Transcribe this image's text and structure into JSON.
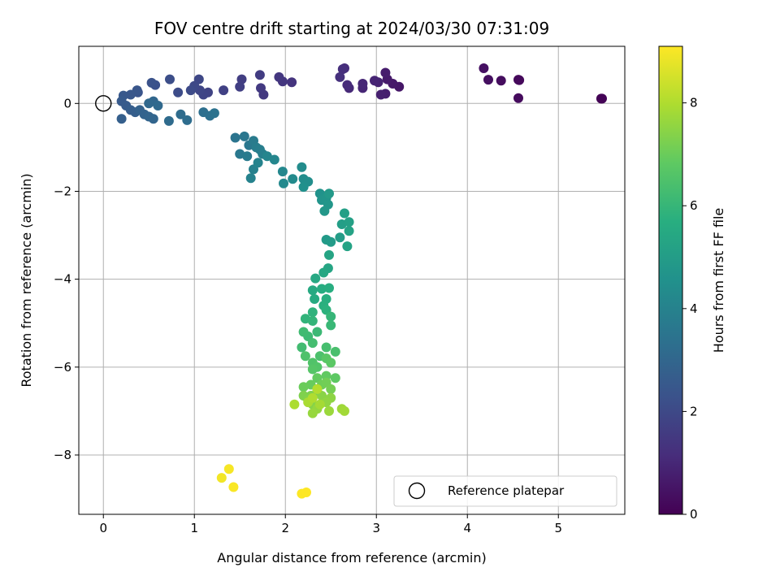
{
  "chart_data": {
    "type": "scatter",
    "title": "FOV centre drift starting at 2024/03/30 07:31:09",
    "xlabel": "Angular distance from reference (arcmin)",
    "ylabel": "Rotation from reference (arcmin)",
    "xlim": [
      -0.27,
      5.73
    ],
    "ylim": [
      -9.35,
      1.3
    ],
    "xticks": [
      0,
      1,
      2,
      3,
      4,
      5
    ],
    "yticks": [
      0,
      -2,
      -4,
      -6,
      -8
    ],
    "grid": true,
    "colorbar": {
      "label": "Hours from first FF file",
      "colormap": "viridis",
      "range": [
        0,
        9.1
      ],
      "ticks": [
        0,
        2,
        4,
        6,
        8
      ]
    },
    "legend": {
      "placement": "lower-right",
      "entries": [
        {
          "label": "Reference platepar",
          "marker": "open-circle"
        }
      ]
    },
    "reference_point": {
      "x": 0,
      "y": 0
    },
    "series": [
      {
        "points": [
          [
            5.47,
            0.11,
            0.0
          ],
          [
            5.48,
            0.11,
            0.05
          ],
          [
            4.56,
            0.54,
            0.15
          ],
          [
            4.57,
            0.53,
            0.2
          ],
          [
            4.56,
            0.12,
            0.25
          ],
          [
            4.37,
            0.52,
            0.3
          ],
          [
            4.23,
            0.54,
            0.35
          ],
          [
            4.18,
            0.8,
            0.4
          ],
          [
            3.25,
            0.38,
            0.55
          ],
          [
            3.18,
            0.45,
            0.6
          ],
          [
            3.12,
            0.55,
            0.65
          ],
          [
            3.1,
            0.7,
            0.7
          ],
          [
            3.1,
            0.22,
            0.75
          ],
          [
            3.05,
            0.2,
            0.8
          ],
          [
            3.02,
            0.48,
            0.85
          ],
          [
            2.98,
            0.52,
            0.9
          ],
          [
            2.85,
            0.35,
            0.95
          ],
          [
            2.85,
            0.45,
            1.0
          ],
          [
            2.7,
            0.35,
            1.05
          ],
          [
            2.68,
            0.42,
            1.1
          ],
          [
            2.65,
            0.8,
            1.15
          ],
          [
            2.63,
            0.78,
            1.2
          ],
          [
            2.6,
            0.6,
            1.25
          ],
          [
            2.07,
            0.48,
            1.35
          ],
          [
            1.97,
            0.5,
            1.4
          ],
          [
            1.93,
            0.6,
            1.45
          ],
          [
            1.76,
            0.2,
            1.5
          ],
          [
            1.73,
            0.35,
            1.55
          ],
          [
            1.72,
            0.65,
            1.6
          ],
          [
            1.52,
            0.55,
            1.65
          ],
          [
            1.5,
            0.38,
            1.7
          ],
          [
            1.32,
            0.3,
            1.75
          ],
          [
            1.15,
            0.25,
            1.8
          ],
          [
            1.1,
            0.2,
            1.85
          ],
          [
            1.06,
            0.3,
            1.9
          ],
          [
            1.05,
            0.55,
            1.95
          ],
          [
            1.0,
            0.4,
            2.0
          ],
          [
            0.96,
            0.3,
            2.05
          ],
          [
            0.82,
            0.25,
            2.1
          ],
          [
            0.73,
            0.55,
            2.15
          ],
          [
            0.57,
            0.42,
            2.25
          ],
          [
            0.53,
            0.47,
            2.3
          ],
          [
            0.38,
            0.25,
            2.35
          ],
          [
            0.37,
            0.3,
            2.4
          ],
          [
            0.3,
            0.2,
            2.45
          ],
          [
            0.22,
            0.18,
            2.5
          ],
          [
            0.2,
            0.05,
            2.55
          ],
          [
            0.25,
            -0.05,
            2.6
          ],
          [
            0.3,
            -0.15,
            2.65
          ],
          [
            0.35,
            -0.2,
            2.7
          ],
          [
            0.2,
            -0.35,
            2.75
          ],
          [
            0.4,
            -0.15,
            2.8
          ],
          [
            0.45,
            -0.25,
            2.85
          ],
          [
            0.5,
            -0.3,
            2.9
          ],
          [
            0.55,
            -0.35,
            2.95
          ],
          [
            0.55,
            0.05,
            3.0
          ],
          [
            0.5,
            0.0,
            3.05
          ],
          [
            0.6,
            -0.05,
            3.1
          ],
          [
            0.72,
            -0.4,
            3.15
          ],
          [
            0.85,
            -0.25,
            3.2
          ],
          [
            0.92,
            -0.38,
            3.25
          ],
          [
            1.1,
            -0.2,
            3.3
          ],
          [
            1.17,
            -0.28,
            3.35
          ],
          [
            1.22,
            -0.22,
            3.4
          ],
          [
            1.45,
            -0.78,
            3.5
          ],
          [
            1.55,
            -0.75,
            3.55
          ],
          [
            1.6,
            -0.95,
            3.6
          ],
          [
            1.5,
            -1.15,
            3.65
          ],
          [
            1.58,
            -1.2,
            3.7
          ],
          [
            1.65,
            -0.85,
            3.75
          ],
          [
            1.68,
            -1.0,
            3.8
          ],
          [
            1.72,
            -1.05,
            3.85
          ],
          [
            1.75,
            -1.15,
            3.9
          ],
          [
            1.65,
            -1.5,
            3.95
          ],
          [
            1.62,
            -1.7,
            4.0
          ],
          [
            1.7,
            -1.35,
            4.05
          ],
          [
            1.8,
            -1.2,
            4.1
          ],
          [
            1.88,
            -1.28,
            4.15
          ],
          [
            1.97,
            -1.55,
            4.2
          ],
          [
            1.98,
            -1.82,
            4.25
          ],
          [
            2.08,
            -1.72,
            4.3
          ],
          [
            2.18,
            -1.45,
            4.35
          ],
          [
            2.2,
            -1.72,
            4.4
          ],
          [
            2.25,
            -1.78,
            4.45
          ],
          [
            2.2,
            -1.9,
            4.5
          ],
          [
            2.38,
            -2.05,
            4.6
          ],
          [
            2.4,
            -2.2,
            4.65
          ],
          [
            2.45,
            -2.15,
            4.7
          ],
          [
            2.47,
            -2.3,
            4.75
          ],
          [
            2.43,
            -2.45,
            4.8
          ],
          [
            2.48,
            -2.05,
            4.85
          ],
          [
            2.45,
            -3.1,
            4.9
          ],
          [
            2.5,
            -3.15,
            4.95
          ],
          [
            2.6,
            -3.05,
            5.0
          ],
          [
            2.62,
            -2.75,
            5.05
          ],
          [
            2.65,
            -2.5,
            5.1
          ],
          [
            2.7,
            -2.7,
            5.15
          ],
          [
            2.7,
            -2.9,
            5.2
          ],
          [
            2.68,
            -3.25,
            5.25
          ],
          [
            2.48,
            -3.45,
            5.3
          ],
          [
            2.47,
            -3.75,
            5.35
          ],
          [
            2.42,
            -3.85,
            5.4
          ],
          [
            2.33,
            -3.98,
            5.45
          ],
          [
            2.3,
            -4.25,
            5.5
          ],
          [
            2.32,
            -4.45,
            5.55
          ],
          [
            2.4,
            -4.22,
            5.6
          ],
          [
            2.48,
            -4.2,
            5.65
          ],
          [
            2.45,
            -4.45,
            5.7
          ],
          [
            2.42,
            -4.6,
            5.75
          ],
          [
            2.45,
            -4.7,
            5.8
          ],
          [
            2.3,
            -4.75,
            5.85
          ],
          [
            2.22,
            -4.9,
            5.9
          ],
          [
            2.3,
            -4.95,
            5.95
          ],
          [
            2.5,
            -4.85,
            6.0
          ],
          [
            2.5,
            -5.05,
            6.05
          ],
          [
            2.35,
            -5.2,
            6.1
          ],
          [
            2.25,
            -5.3,
            6.15
          ],
          [
            2.2,
            -5.2,
            6.2
          ],
          [
            2.18,
            -5.55,
            6.25
          ],
          [
            2.3,
            -5.45,
            6.3
          ],
          [
            2.45,
            -5.55,
            6.35
          ],
          [
            2.55,
            -5.65,
            6.4
          ],
          [
            2.38,
            -5.75,
            6.45
          ],
          [
            2.22,
            -5.75,
            6.5
          ],
          [
            2.3,
            -5.9,
            6.55
          ],
          [
            2.35,
            -6.0,
            6.6
          ],
          [
            2.3,
            -6.05,
            6.65
          ],
          [
            2.45,
            -5.8,
            6.7
          ],
          [
            2.5,
            -5.9,
            6.75
          ],
          [
            2.55,
            -6.25,
            6.8
          ],
          [
            2.45,
            -6.2,
            6.85
          ],
          [
            2.35,
            -6.25,
            6.9
          ],
          [
            2.28,
            -6.4,
            6.95
          ],
          [
            2.2,
            -6.45,
            7.0
          ],
          [
            2.4,
            -6.4,
            7.05
          ],
          [
            2.45,
            -6.35,
            7.1
          ],
          [
            2.5,
            -6.5,
            7.15
          ],
          [
            2.35,
            -6.55,
            7.2
          ],
          [
            2.28,
            -6.65,
            7.25
          ],
          [
            2.2,
            -6.65,
            7.3
          ],
          [
            2.25,
            -6.75,
            7.35
          ],
          [
            2.3,
            -6.85,
            7.4
          ],
          [
            2.4,
            -6.65,
            7.45
          ],
          [
            2.5,
            -6.7,
            7.5
          ],
          [
            2.45,
            -6.8,
            7.55
          ],
          [
            2.35,
            -6.95,
            7.6
          ],
          [
            2.3,
            -7.05,
            7.65
          ],
          [
            2.48,
            -7.0,
            7.7
          ],
          [
            2.62,
            -6.95,
            7.75
          ],
          [
            2.65,
            -7.0,
            7.8
          ],
          [
            2.38,
            -6.85,
            7.85
          ],
          [
            2.25,
            -6.8,
            7.9
          ],
          [
            2.1,
            -6.85,
            7.95
          ],
          [
            2.3,
            -6.7,
            8.0
          ],
          [
            2.35,
            -6.5,
            8.05
          ],
          [
            1.3,
            -8.52,
            8.95
          ],
          [
            1.38,
            -8.32,
            9.0
          ],
          [
            1.43,
            -8.73,
            9.05
          ],
          [
            2.18,
            -8.88,
            9.08
          ],
          [
            2.23,
            -8.85,
            9.1
          ]
        ]
      }
    ]
  }
}
